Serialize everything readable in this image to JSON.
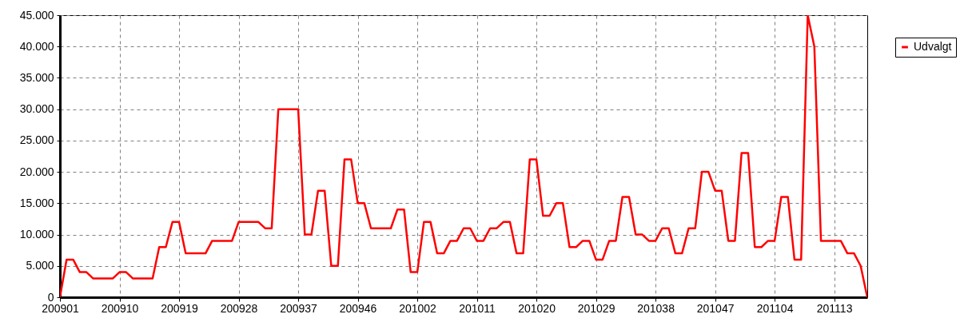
{
  "chart_data": {
    "type": "line",
    "categories": [
      "200901",
      null,
      null,
      null,
      null,
      null,
      null,
      null,
      null,
      "200910",
      null,
      null,
      null,
      null,
      null,
      null,
      null,
      null,
      "200919",
      null,
      null,
      null,
      null,
      null,
      null,
      null,
      null,
      "200928",
      null,
      null,
      null,
      null,
      null,
      null,
      null,
      null,
      "200937",
      null,
      null,
      null,
      null,
      null,
      null,
      null,
      null,
      "200946",
      null,
      null,
      null,
      null,
      null,
      null,
      null,
      null,
      "201002",
      null,
      null,
      null,
      null,
      null,
      null,
      null,
      null,
      "201011",
      null,
      null,
      null,
      null,
      null,
      null,
      null,
      null,
      "201020",
      null,
      null,
      null,
      null,
      null,
      null,
      null,
      null,
      "201029",
      null,
      null,
      null,
      null,
      null,
      null,
      null,
      null,
      "201038",
      null,
      null,
      null,
      null,
      null,
      null,
      null,
      null,
      "201047",
      null,
      null,
      null,
      null,
      null,
      null,
      null,
      null,
      "201104",
      null,
      null,
      null,
      null,
      null,
      null,
      null,
      null,
      "201113",
      null,
      null,
      null,
      null,
      null
    ],
    "series": [
      {
        "name": "Udvalgt",
        "color": "#ff0000",
        "values": [
          0,
          6000,
          6000,
          4000,
          4000,
          3000,
          3000,
          3000,
          3000,
          4000,
          4000,
          3000,
          3000,
          3000,
          3000,
          8000,
          8000,
          12000,
          12000,
          7000,
          7000,
          7000,
          7000,
          9000,
          9000,
          9000,
          9000,
          12000,
          12000,
          12000,
          12000,
          11000,
          11000,
          30000,
          30000,
          30000,
          30000,
          10000,
          10000,
          17000,
          17000,
          5000,
          5000,
          22000,
          22000,
          15000,
          15000,
          11000,
          11000,
          11000,
          11000,
          14000,
          14000,
          4000,
          4000,
          12000,
          12000,
          7000,
          7000,
          9000,
          9000,
          11000,
          11000,
          9000,
          9000,
          11000,
          11000,
          12000,
          12000,
          7000,
          7000,
          22000,
          22000,
          13000,
          13000,
          15000,
          15000,
          8000,
          8000,
          9000,
          9000,
          6000,
          6000,
          9000,
          9000,
          16000,
          16000,
          10000,
          10000,
          9000,
          9000,
          11000,
          11000,
          7000,
          7000,
          11000,
          11000,
          20000,
          20000,
          17000,
          17000,
          9000,
          9000,
          23000,
          23000,
          8000,
          8000,
          9000,
          9000,
          16000,
          16000,
          6000,
          6000,
          45000,
          40000,
          9000,
          9000,
          9000,
          9000,
          7000,
          7000,
          5000,
          0
        ]
      }
    ],
    "ylim": [
      0,
      45000
    ],
    "yticks": [
      {
        "value": 0,
        "label": "0"
      },
      {
        "value": 5000,
        "label": "5.000"
      },
      {
        "value": 10000,
        "label": "10.000"
      },
      {
        "value": 15000,
        "label": "15.000"
      },
      {
        "value": 20000,
        "label": "20.000"
      },
      {
        "value": 25000,
        "label": "25.000"
      },
      {
        "value": 30000,
        "label": "30.000"
      },
      {
        "value": 35000,
        "label": "35.000"
      },
      {
        "value": 40000,
        "label": "40.000"
      },
      {
        "value": 45000,
        "label": "45.000"
      }
    ],
    "grid": true,
    "legend": "top right",
    "line_style": "solid",
    "marker": "none"
  }
}
